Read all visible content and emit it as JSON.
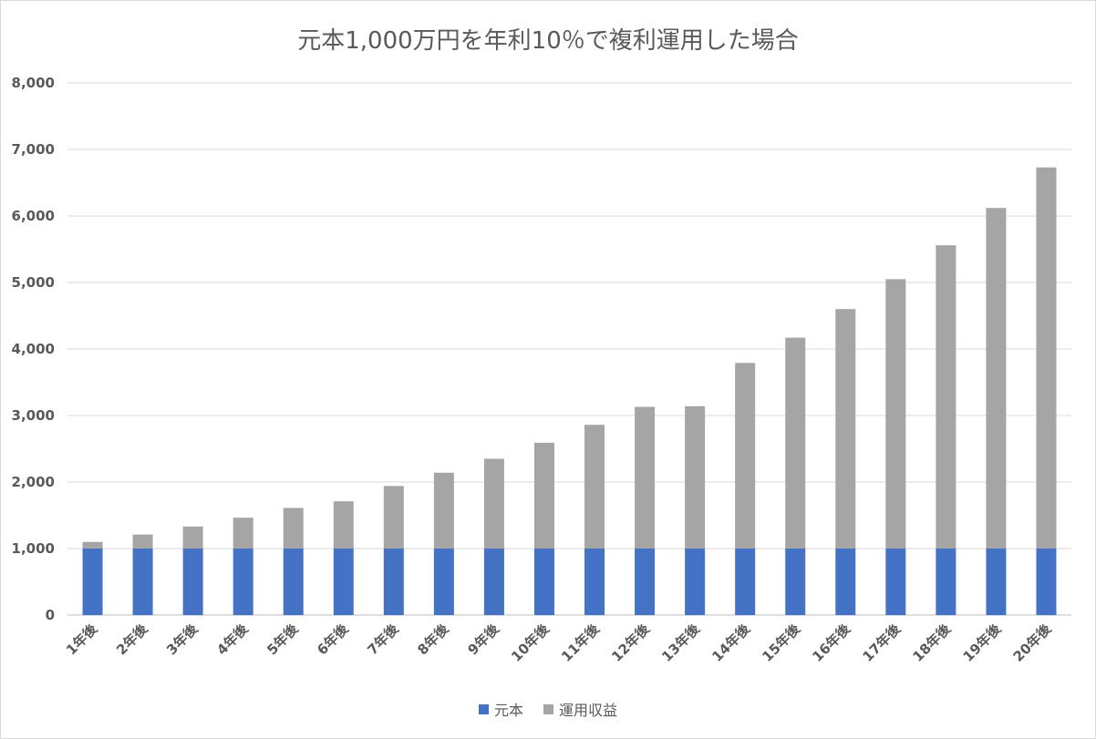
{
  "chart_data": {
    "type": "bar",
    "stacked": true,
    "title": "元本1,000万円を年利10％で複利運用した場合",
    "categories": [
      "1年後",
      "2年後",
      "3年後",
      "4年後",
      "5年後",
      "6年後",
      "7年後",
      "8年後",
      "9年後",
      "10年後",
      "11年後",
      "12年後",
      "13年後",
      "14年後",
      "15年後",
      "16年後",
      "17年後",
      "18年後",
      "19年後",
      "20年後"
    ],
    "series": [
      {
        "name": "元本",
        "color": "#4472c4",
        "values": [
          1000,
          1000,
          1000,
          1000,
          1000,
          1000,
          1000,
          1000,
          1000,
          1000,
          1000,
          1000,
          1000,
          1000,
          1000,
          1000,
          1000,
          1000,
          1000,
          1000
        ]
      },
      {
        "name": "運用収益",
        "color": "#a5a5a5",
        "values": [
          100,
          210,
          331,
          464,
          611,
          710,
          940,
          1140,
          1350,
          1590,
          1860,
          2130,
          2140,
          2790,
          3170,
          3600,
          4050,
          4560,
          5120,
          5730
        ]
      }
    ],
    "ylim": [
      0,
      8000
    ],
    "yticks": [
      "0",
      "1,000",
      "2,000",
      "3,000",
      "4,000",
      "5,000",
      "6,000",
      "7,000",
      "8,000"
    ],
    "grid": true,
    "legend": "bottom"
  }
}
